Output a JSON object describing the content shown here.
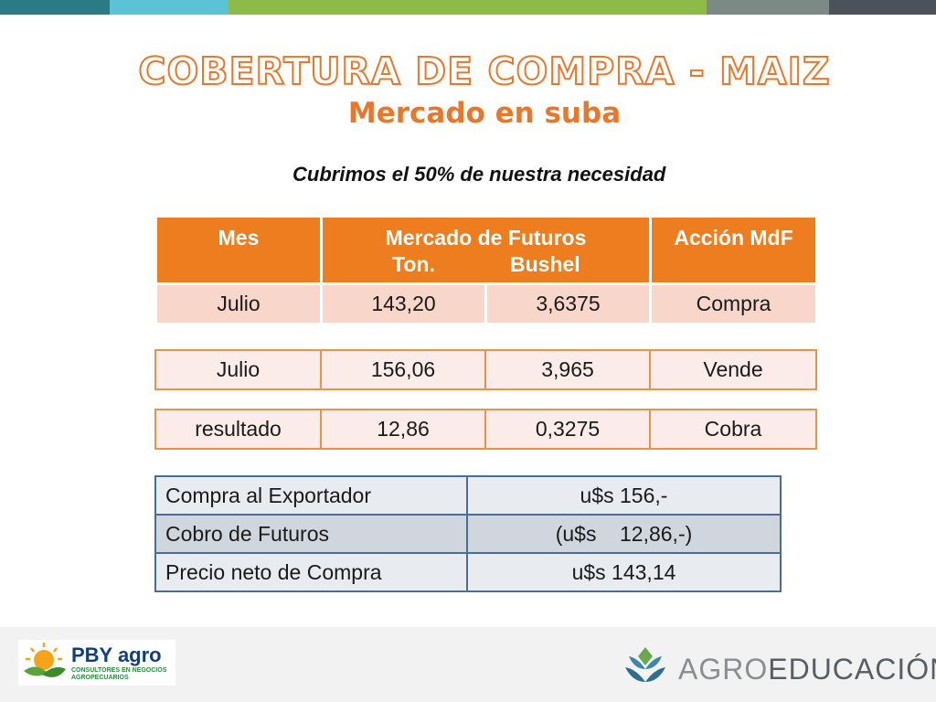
{
  "colors": {
    "accent": "#e8762b",
    "table_header": "#ee7d1f",
    "band": [
      "#2a7b86",
      "#5bc3d5",
      "#8dbb4a",
      "#7c8a86",
      "#4b525a"
    ]
  },
  "title": "COBERTURA DE COMPRA - MAIZ",
  "subtitle": "Mercado en suba",
  "lead": "Cubrimos el 50% de nuestra necesidad",
  "futures_table": {
    "headers": {
      "mes": "Mes",
      "mercado": "Mercado de Futuros",
      "ton": "Ton.",
      "bushel": "Bushel",
      "accion": "Acción  MdF"
    },
    "row": [
      "Julio",
      "143,20",
      "3,6375",
      "Compra"
    ]
  },
  "sell_row": [
    "Julio",
    "156,06",
    "3,965",
    "Vende"
  ],
  "result_row": [
    "resultado",
    "12,86",
    "0,3275",
    "Cobra"
  ],
  "summary": [
    {
      "label": "Compra al Exportador",
      "value": "u$s 156,-"
    },
    {
      "label": "Cobro de Futuros",
      "value": "(u$s    12,86,-)"
    },
    {
      "label": "Precio neto de Compra",
      "value": "u$s 143,14"
    }
  ],
  "footer": {
    "pby_name": "PBY agro",
    "pby_tagline": "CONSULTORES EN NEGOCIOS AGROPECUARIOS",
    "agro_brand_a": "AGRO",
    "agro_brand_b": "EDUCACIÓN"
  }
}
